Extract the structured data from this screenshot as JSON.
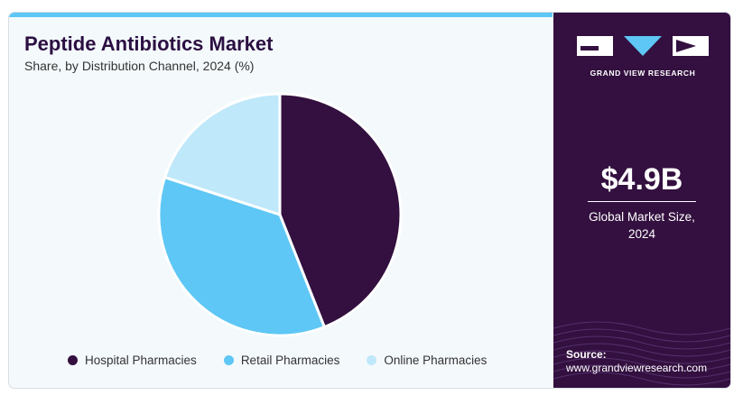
{
  "header": {
    "title": "Peptide Antibiotics Market",
    "subtitle": "Share, by Distribution Channel, 2024 (%)"
  },
  "chart_data": {
    "type": "pie",
    "categories": [
      "Hospital Pharmacies",
      "Retail Pharmacies",
      "Online Pharmacies"
    ],
    "values": [
      44,
      36,
      20
    ],
    "colors": [
      "#33103f",
      "#5ec7f5",
      "#bfe8fa"
    ],
    "legend_position": "bottom"
  },
  "sidebar": {
    "brand": "GRAND VIEW RESEARCH",
    "kpi_value": "$4.9B",
    "kpi_label_line1": "Global Market Size,",
    "kpi_label_line2": "2024",
    "source_label": "Source:",
    "source_url": "www.grandviewresearch.com",
    "background": "#33103f"
  }
}
